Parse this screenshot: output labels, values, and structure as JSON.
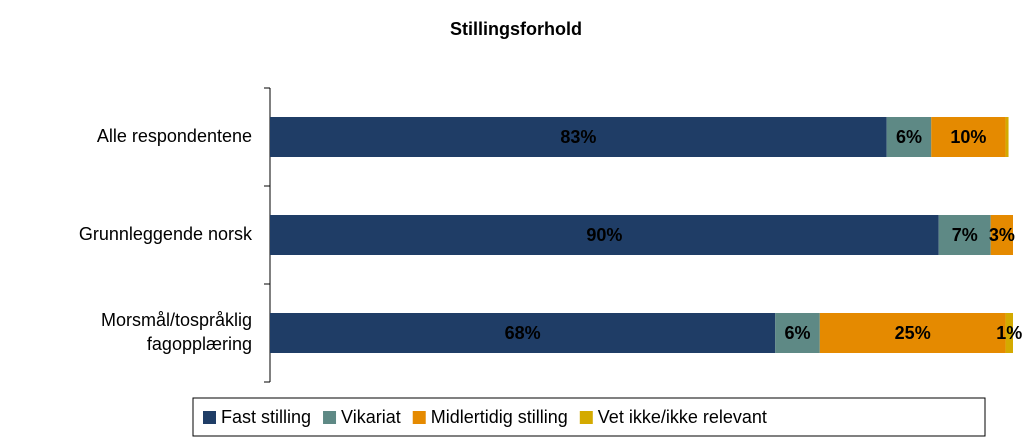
{
  "chart_data": {
    "type": "stacked_bar_horizontal",
    "title": "Stillingsforhold",
    "categories": [
      "Alle respondentene",
      "Grunnleggende norsk",
      [
        "Morsmål/tospråklig",
        "fagopplæring"
      ]
    ],
    "series": [
      {
        "name": "Fast stilling",
        "color": "#1f3d66",
        "label_color": "#ffffff",
        "values": [
          83,
          90,
          68
        ],
        "value_labels": [
          "83%",
          "90%",
          "68%"
        ]
      },
      {
        "name": "Vikariat",
        "color": "#5e8985",
        "label_color": "#ffffff",
        "values": [
          6,
          7,
          6
        ],
        "value_labels": [
          "6%",
          "7%",
          "6%"
        ]
      },
      {
        "name": "Midlertidig stilling",
        "color": "#e58a00",
        "label_color": "#000000",
        "values": [
          10,
          3,
          25
        ],
        "value_labels": [
          "10%",
          "3%",
          "25%"
        ]
      },
      {
        "name": "Vet ikke/ikke relevant",
        "color": "#d4aa00",
        "label_color": "#000000",
        "values": [
          0.4,
          0,
          1
        ],
        "value_labels": [
          null,
          null,
          "1%"
        ]
      }
    ],
    "xlim": [
      0,
      100
    ],
    "legend": "bottom"
  }
}
